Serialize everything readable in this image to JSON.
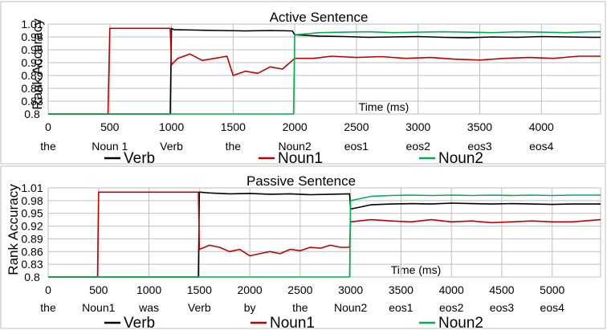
{
  "colors": {
    "verb": "#000000",
    "noun1": "#c00000",
    "noun2": "#00b050",
    "grid": "#bfbfbf"
  },
  "chart_data": [
    {
      "type": "line",
      "title": "Active Sentence",
      "ylabel": "Rank Accuracy",
      "xlabel": "Time (ms)",
      "ylim": [
        0.8,
        1.01
      ],
      "yticks": [
        "1.01",
        "0.98",
        "0.95",
        "0.92",
        "0.89",
        "0.86",
        "0.83",
        "0.8"
      ],
      "xlim": [
        0,
        4480
      ],
      "xticks": [
        "0",
        "500",
        "1000",
        "1500",
        "2000",
        "2500",
        "3000",
        "3500",
        "4000"
      ],
      "word_labels": [
        "the",
        "Noun 1",
        "Verb",
        "the",
        "Noun2",
        "eos1",
        "eos2",
        "eos3",
        "eos4"
      ],
      "legend": "bottom",
      "grid": true,
      "series": [
        {
          "name": "Verb",
          "color": "#000000",
          "x": [
            0,
            990,
            1000,
            1020,
            1200,
            1400,
            1600,
            1800,
            1980,
            2000,
            2200,
            2400,
            2600,
            2800,
            3000,
            3200,
            3400,
            3600,
            3800,
            4000,
            4200,
            4400,
            4480
          ],
          "y": [
            0.8,
            0.8,
            1.0,
            0.997,
            0.996,
            0.995,
            0.994,
            0.995,
            0.994,
            0.985,
            0.982,
            0.981,
            0.979,
            0.98,
            0.981,
            0.979,
            0.978,
            0.98,
            0.979,
            0.981,
            0.98,
            0.979,
            0.979
          ]
        },
        {
          "name": "Noun1",
          "color": "#c00000",
          "x": [
            0,
            485,
            500,
            990,
            1000,
            1050,
            1150,
            1250,
            1350,
            1450,
            1500,
            1600,
            1700,
            1800,
            1900,
            2000,
            2150,
            2300,
            2500,
            2700,
            2900,
            3100,
            3300,
            3500,
            3700,
            3900,
            4100,
            4300,
            4480
          ],
          "y": [
            0.8,
            0.8,
            1.0,
            1.0,
            0.915,
            0.93,
            0.94,
            0.925,
            0.93,
            0.935,
            0.89,
            0.9,
            0.895,
            0.91,
            0.905,
            0.93,
            0.93,
            0.935,
            0.932,
            0.934,
            0.93,
            0.932,
            0.928,
            0.926,
            0.93,
            0.932,
            0.93,
            0.935,
            0.935
          ]
        },
        {
          "name": "Noun2",
          "color": "#00b050",
          "x": [
            0,
            1990,
            2000,
            2200,
            2400,
            2600,
            2800,
            3000,
            3200,
            3400,
            3600,
            3800,
            4000,
            4200,
            4400,
            4480
          ],
          "y": [
            0.8,
            0.8,
            0.985,
            0.99,
            0.991,
            0.992,
            0.99,
            0.991,
            0.992,
            0.991,
            0.99,
            0.992,
            0.991,
            0.99,
            0.992,
            0.992
          ]
        }
      ]
    },
    {
      "type": "line",
      "title": "Passive Sentence",
      "ylabel": "Rank Accuracy",
      "xlabel": "Time (ms)",
      "ylim": [
        0.8,
        1.01
      ],
      "yticks": [
        "1.01",
        "0.98",
        "0.95",
        "0.92",
        "0.89",
        "0.86",
        "0.83",
        "0.8"
      ],
      "xlim": [
        0,
        5480
      ],
      "xticks": [
        "0",
        "500",
        "1000",
        "1500",
        "2000",
        "2500",
        "3000",
        "3500",
        "4000",
        "4500",
        "5000"
      ],
      "word_labels": [
        "the",
        "Noun1",
        "was",
        "Verb",
        "by",
        "the",
        "Noun2",
        "eos1",
        "eos2",
        "eos3",
        "eos4"
      ],
      "legend": "bottom",
      "grid": true,
      "series": [
        {
          "name": "Verb",
          "color": "#000000",
          "x": [
            0,
            1490,
            1500,
            1600,
            1800,
            2000,
            2200,
            2400,
            2600,
            2800,
            2990,
            3000,
            3200,
            3400,
            3600,
            3800,
            4000,
            4200,
            4400,
            4600,
            4800,
            5000,
            5200,
            5480
          ],
          "y": [
            0.8,
            0.8,
            1.0,
            0.998,
            0.996,
            0.997,
            0.995,
            0.996,
            0.994,
            0.995,
            0.996,
            0.96,
            0.97,
            0.972,
            0.973,
            0.972,
            0.974,
            0.973,
            0.972,
            0.973,
            0.972,
            0.971,
            0.972,
            0.972
          ]
        },
        {
          "name": "Noun1",
          "color": "#c00000",
          "x": [
            0,
            490,
            500,
            1490,
            1500,
            1600,
            1700,
            1800,
            1900,
            2000,
            2100,
            2200,
            2300,
            2400,
            2500,
            2600,
            2700,
            2800,
            2900,
            2990,
            3000,
            3200,
            3400,
            3600,
            3800,
            4000,
            4200,
            4400,
            4600,
            4800,
            5000,
            5200,
            5480
          ],
          "y": [
            0.8,
            0.8,
            1.0,
            1.0,
            0.865,
            0.875,
            0.87,
            0.86,
            0.865,
            0.85,
            0.855,
            0.86,
            0.855,
            0.865,
            0.862,
            0.87,
            0.868,
            0.875,
            0.87,
            0.87,
            0.93,
            0.935,
            0.932,
            0.93,
            0.935,
            0.93,
            0.932,
            0.928,
            0.93,
            0.932,
            0.93,
            0.93,
            0.935
          ]
        },
        {
          "name": "Noun2",
          "color": "#00b050",
          "x": [
            0,
            2990,
            3000,
            3200,
            3400,
            3600,
            3800,
            4000,
            4200,
            4400,
            4600,
            4800,
            5000,
            5200,
            5480
          ],
          "y": [
            0.8,
            0.8,
            0.98,
            0.99,
            0.992,
            0.993,
            0.992,
            0.993,
            0.992,
            0.993,
            0.992,
            0.993,
            0.992,
            0.993,
            0.993
          ]
        }
      ]
    }
  ]
}
